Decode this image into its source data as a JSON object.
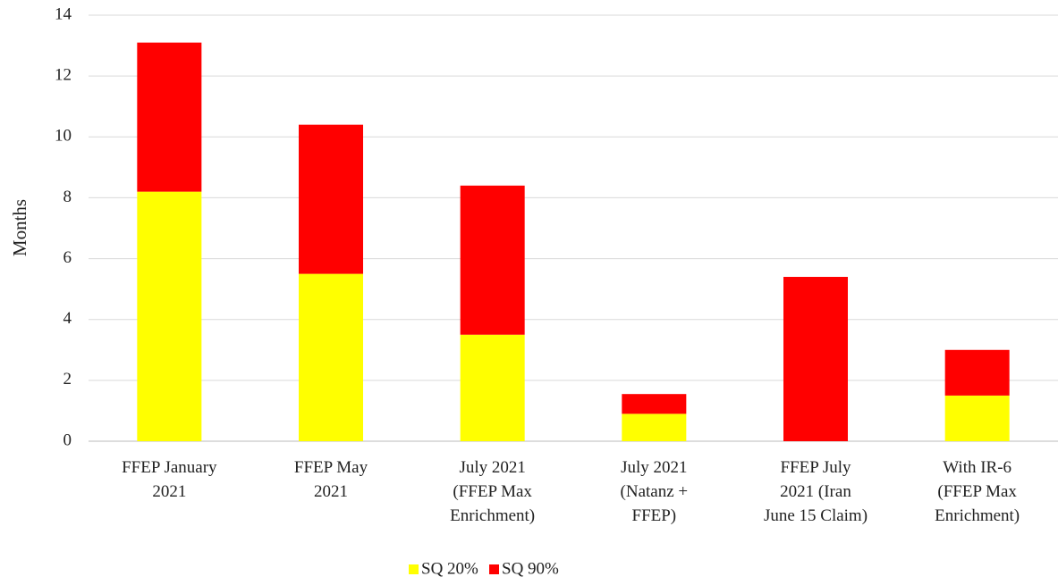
{
  "chart_data": {
    "type": "stacked_bar",
    "y_label": "Months",
    "categories": [
      "FFEP January\n2021",
      "FFEP May\n2021",
      "July 2021\n(FFEP Max\nEnrichment)",
      "July 2021\n(Natanz +\nFFEP)",
      "FFEP July\n2021 (Iran\nJune 15 Claim)",
      "With IR-6\n(FFEP Max\nEnrichment)"
    ],
    "series": [
      {
        "name": "SQ 20%",
        "color": "#ffff00",
        "values": [
          8.2,
          5.5,
          3.5,
          0.9,
          0,
          1.5
        ]
      },
      {
        "name": "SQ 90%",
        "color": "#ff0000",
        "values": [
          4.9,
          4.9,
          4.9,
          0.65,
          5.4,
          1.5
        ]
      }
    ],
    "ylim": [
      0,
      14
    ],
    "yticks": [
      0,
      2,
      4,
      6,
      8,
      10,
      12,
      14
    ],
    "grid": true
  }
}
